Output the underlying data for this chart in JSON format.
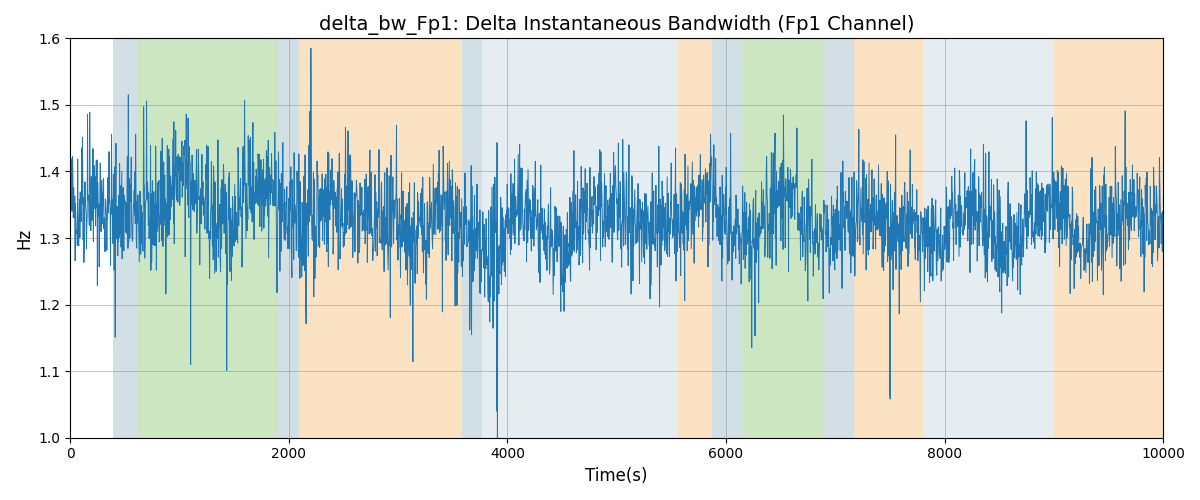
{
  "title": "delta_bw_Fp1: Delta Instantaneous Bandwidth (Fp1 Channel)",
  "xlabel": "Time(s)",
  "ylabel": "Hz",
  "xlim": [
    0,
    10000
  ],
  "ylim": [
    1.0,
    1.6
  ],
  "line_color": "#1f77b4",
  "line_width": 0.7,
  "seed": 42,
  "colored_bands": [
    {
      "xmin": 390,
      "xmax": 615,
      "color": "#aec6cf",
      "alpha": 0.55
    },
    {
      "xmin": 615,
      "xmax": 1900,
      "color": "#90c978",
      "alpha": 0.45
    },
    {
      "xmin": 1900,
      "xmax": 2090,
      "color": "#aec6cf",
      "alpha": 0.55
    },
    {
      "xmin": 2090,
      "xmax": 3580,
      "color": "#f5c07a",
      "alpha": 0.45
    },
    {
      "xmin": 3580,
      "xmax": 3770,
      "color": "#aec6cf",
      "alpha": 0.55
    },
    {
      "xmin": 3770,
      "xmax": 5560,
      "color": "#aec6cf",
      "alpha": 0.3
    },
    {
      "xmin": 5560,
      "xmax": 5870,
      "color": "#f5c07a",
      "alpha": 0.45
    },
    {
      "xmin": 5870,
      "xmax": 6150,
      "color": "#aec6cf",
      "alpha": 0.55
    },
    {
      "xmin": 6150,
      "xmax": 6900,
      "color": "#90c978",
      "alpha": 0.45
    },
    {
      "xmin": 6900,
      "xmax": 7170,
      "color": "#aec6cf",
      "alpha": 0.55
    },
    {
      "xmin": 7170,
      "xmax": 7800,
      "color": "#f5c07a",
      "alpha": 0.45
    },
    {
      "xmin": 7800,
      "xmax": 9000,
      "color": "#aec6cf",
      "alpha": 0.3
    },
    {
      "xmin": 9000,
      "xmax": 10000,
      "color": "#f5c07a",
      "alpha": 0.45
    }
  ]
}
